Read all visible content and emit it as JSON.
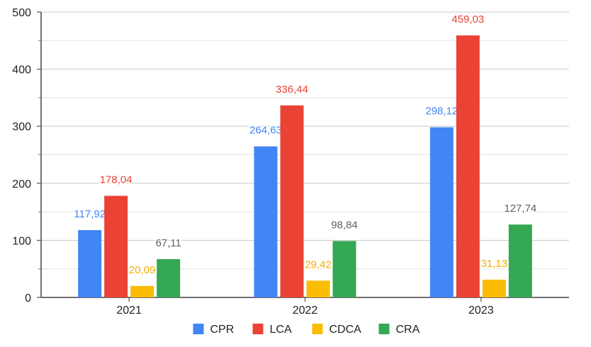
{
  "chart_data": {
    "type": "bar",
    "categories": [
      "2021",
      "2022",
      "2023"
    ],
    "series": [
      {
        "name": "CPR",
        "color": "#4285F4",
        "values": [
          117.92,
          264.63,
          298.12
        ],
        "labels": [
          "117,92",
          "264,63",
          "298,12"
        ]
      },
      {
        "name": "LCA",
        "color": "#EA4335",
        "values": [
          178.04,
          336.44,
          459.03
        ],
        "labels": [
          "178,04",
          "336,44",
          "459,03"
        ]
      },
      {
        "name": "CDCA",
        "color": "#FBBC04",
        "values": [
          20.09,
          29.42,
          31.13
        ],
        "labels": [
          "20,09",
          "29,42",
          "31,13"
        ]
      },
      {
        "name": "CRA",
        "color": "#34A853",
        "values": [
          67.11,
          98.84,
          127.74
        ],
        "labels": [
          "67,11",
          "98,84",
          "127,74"
        ]
      }
    ],
    "label_colors": [
      "#4285F4",
      "#EA4335",
      "#F9AB00",
      "#5F6368"
    ],
    "ylim": [
      0,
      500
    ],
    "y_ticks": [
      0,
      100,
      200,
      300,
      400,
      500
    ],
    "grid": true,
    "legend": "bottom",
    "title": "",
    "xlabel": "",
    "ylabel": ""
  }
}
